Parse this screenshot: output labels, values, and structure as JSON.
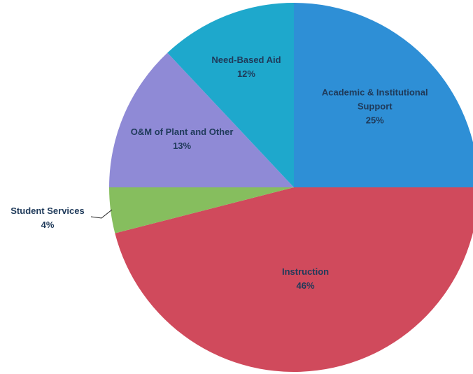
{
  "chart_data": {
    "type": "pie",
    "title": "",
    "slices": [
      {
        "name": "Academic & Institutional Support",
        "label_lines": [
          "Academic & Institutional",
          "Support"
        ],
        "percent_label": "25%",
        "value": 25,
        "color": "#2e8fd6"
      },
      {
        "name": "Instruction",
        "label_lines": [
          "Instruction"
        ],
        "percent_label": "46%",
        "value": 46,
        "color": "#d04a5c"
      },
      {
        "name": "Student Services",
        "label_lines": [
          "Student Services"
        ],
        "percent_label": "4%",
        "value": 4,
        "color": "#86be5e"
      },
      {
        "name": "O&M of Plant and Other",
        "label_lines": [
          "O&M of Plant and Other"
        ],
        "percent_label": "13%",
        "value": 13,
        "color": "#8f8ad6"
      },
      {
        "name": "Need-Based Aid",
        "label_lines": [
          "Need-Based Aid"
        ],
        "percent_label": "12%",
        "value": 12,
        "color": "#1ea8cc"
      }
    ],
    "label_color": "#1f3a5a"
  }
}
